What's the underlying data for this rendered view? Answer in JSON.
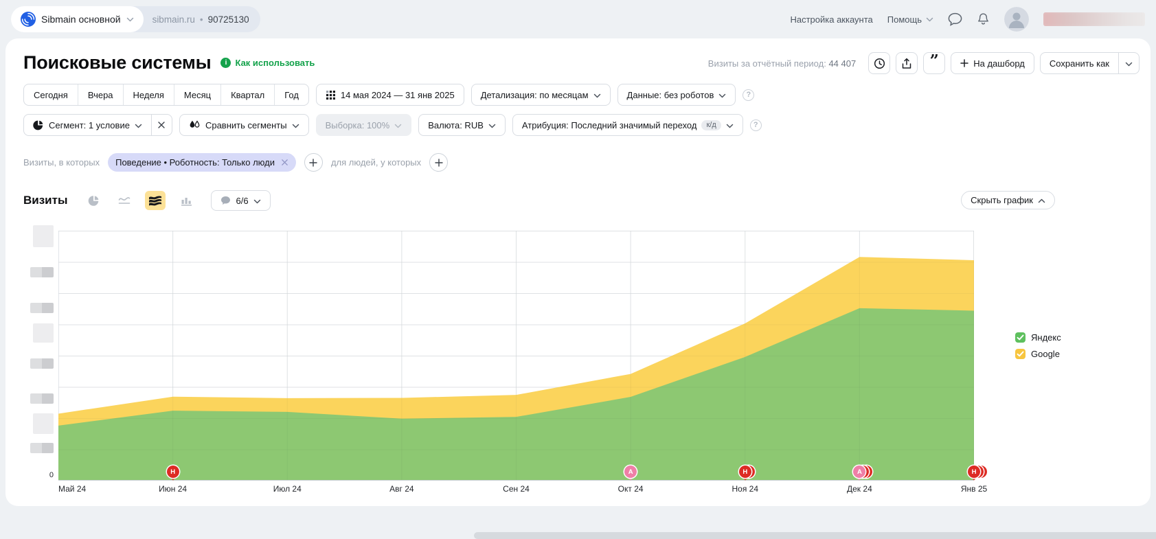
{
  "header": {
    "counter_name": "Sibmain основной",
    "counter_domain": "sibmain.ru",
    "counter_sep": "•",
    "counter_id": "90725130",
    "account_settings": "Настройка аккаунта",
    "help": "Помощь"
  },
  "page": {
    "title": "Поисковые системы",
    "how_to_use": "Как использовать",
    "visits_label": "Визиты за отчётный период:",
    "visits_value": "44 407"
  },
  "toolbar": {
    "to_dashboard": "На дашборд",
    "save_as": "Сохранить как"
  },
  "filters": {
    "period_tabs": [
      "Сегодня",
      "Вчера",
      "Неделя",
      "Месяц",
      "Квартал",
      "Год"
    ],
    "date_range": "14 мая 2024 — 31 янв 2025",
    "detail": "Детализация: по месяцам",
    "data_mode": "Данные: без роботов",
    "segment": "Сегмент: 1 условие",
    "compare": "Сравнить сегменты",
    "sampling": "Выборка: 100%",
    "currency": "Валюта: RUB",
    "attribution": "Атрибуция: Последний значимый переход",
    "attribution_badge": "к/д"
  },
  "segment_bar": {
    "visits_in_which": "Визиты, в которых",
    "chip": "Поведение • Роботность: Только люди",
    "for_people": "для людей, у которых"
  },
  "chart_controls": {
    "metric": "Визиты",
    "goals": "6/6",
    "hide_chart": "Скрыть график"
  },
  "icons": {
    "question_glyph": "?",
    "comments_glyph": "”",
    "info_glyph": "i"
  },
  "chart_data": {
    "type": "area",
    "stacked": true,
    "title": "Визиты",
    "categories": [
      "Май 24",
      "Июн 24",
      "Июл 24",
      "Авг 24",
      "Сен 24",
      "Окт 24",
      "Ноя 24",
      "Дек 24",
      "Янв 25"
    ],
    "series": [
      {
        "name": "Яндекс",
        "color": "#8dc872",
        "legend_color": "#5ec05e",
        "values": [
          2200,
          2800,
          2750,
          2480,
          2550,
          3350,
          4950,
          6900,
          6800
        ]
      },
      {
        "name": "Google",
        "color": "#fbd45c",
        "legend_color": "#f7c53f",
        "values": [
          480,
          560,
          550,
          830,
          880,
          920,
          1340,
          2050,
          2020
        ]
      }
    ],
    "ylim": [
      0,
      10000
    ],
    "x_base_label": "0",
    "y_axis_note": "значения оси Y скрыты (размыты в скриншоте)",
    "grid": true,
    "legend_position": "right",
    "annotations": [
      {
        "x": "Июн 24",
        "letter": "Н",
        "color": "#dd2b24",
        "stack": 1
      },
      {
        "x": "Окт 24",
        "letter": "А",
        "color": "#ef7fa7",
        "stack": 1
      },
      {
        "x": "Ноя 24",
        "letter": "Н",
        "color": "#dd2b24",
        "stack": 2
      },
      {
        "x": "Дек 24",
        "letter": "А",
        "color": "#ef7fa7",
        "stack": 3
      },
      {
        "x": "Янв 25",
        "letter": "Н",
        "color": "#dd2b24",
        "stack": 3
      }
    ]
  }
}
